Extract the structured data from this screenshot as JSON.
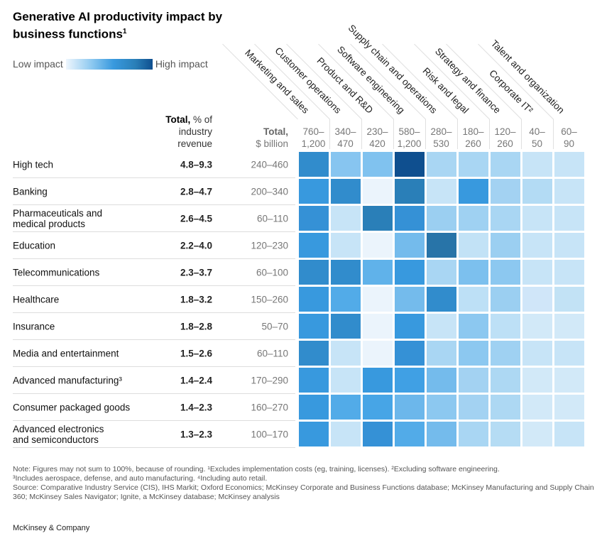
{
  "chart_data": {
    "type": "heatmap",
    "title": "Generative AI productivity impact by business functions",
    "title_footnote": "1",
    "legend": {
      "low_label": "Low impact",
      "high_label": "High impact"
    },
    "header_pct": {
      "bold": "Total,",
      "rest": " % of industry revenue"
    },
    "header_usd": {
      "bold": "Total,",
      "rest": "$ billion"
    },
    "columns": [
      {
        "label": "Marketing and sales",
        "range": [
          "760–",
          "1,200"
        ]
      },
      {
        "label": "Customer operations",
        "range": [
          "340–",
          "470"
        ]
      },
      {
        "label": "Product and R&D",
        "range": [
          "230–",
          "420"
        ]
      },
      {
        "label": "Software engineering",
        "range": [
          "580–",
          "1,200"
        ]
      },
      {
        "label": "Supply chain and operations",
        "range": [
          "280–",
          "530"
        ]
      },
      {
        "label": "Risk and legal",
        "range": [
          "180–",
          "260"
        ]
      },
      {
        "label": "Strategy and finance",
        "range": [
          "120–",
          "260"
        ]
      },
      {
        "label": "Corporate IT²",
        "range": [
          "40–",
          "50"
        ]
      },
      {
        "label": "Talent and organization",
        "range": [
          "60–",
          "90"
        ]
      }
    ],
    "rows": [
      {
        "label": "High tech",
        "pct": "4.8–9.3",
        "usd": "240–460",
        "colors": [
          "#318ccc",
          "#87c5f0",
          "#80c2ef",
          "#0f4f8f",
          "#a9d6f3",
          "#a9d6f3",
          "#a9d6f3",
          "#c7e4f7",
          "#c7e4f7"
        ]
      },
      {
        "label": "Banking",
        "pct": "2.8–4.7",
        "usd": "200–340",
        "colors": [
          "#3899de",
          "#318ccc",
          "#ebf4fc",
          "#2a7fb8",
          "#c7e4f7",
          "#3899de",
          "#a3d2f2",
          "#b3dbf4",
          "#c7e4f7"
        ]
      },
      {
        "label": "Pharmaceuticals and\nmedical products",
        "pct": "2.6–4.5",
        "usd": "60–110",
        "colors": [
          "#3591d6",
          "#c7e4f7",
          "#2a7fb8",
          "#3591d6",
          "#9bcff1",
          "#9fd1f2",
          "#a9d6f3",
          "#c7e4f7",
          "#c7e4f7"
        ]
      },
      {
        "label": "Education",
        "pct": "2.2–4.0",
        "usd": "120–230",
        "colors": [
          "#3899de",
          "#c7e4f7",
          "#ebf4fc",
          "#74bbec",
          "#2874a8",
          "#c2e2f6",
          "#9bcff1",
          "#c7e4f7",
          "#c7e4f7"
        ]
      },
      {
        "label": "Telecommunications",
        "pct": "2.3–3.7",
        "usd": "60–100",
        "colors": [
          "#318ccc",
          "#318ccc",
          "#60b2ea",
          "#3899de",
          "#a9d6f3",
          "#7cc0ee",
          "#8cc8f0",
          "#c7e4f7",
          "#c7e4f7"
        ]
      },
      {
        "label": "Healthcare",
        "pct": "1.8–3.2",
        "usd": "150–260",
        "colors": [
          "#3899de",
          "#52abe8",
          "#ebf4fc",
          "#74bbec",
          "#318ccc",
          "#bde0f6",
          "#9bcff1",
          "#d0e6f9",
          "#c2e2f5"
        ]
      },
      {
        "label": "Insurance",
        "pct": "1.8–2.8",
        "usd": "50–70",
        "colors": [
          "#3899de",
          "#318ccc",
          "#ebf4fc",
          "#3899de",
          "#c7e4f7",
          "#8cc8f0",
          "#bde0f6",
          "#d2e9f8",
          "#d2e9f8"
        ]
      },
      {
        "label": "Media and entertainment",
        "pct": "1.5–2.6",
        "usd": "60–110",
        "colors": [
          "#318ccc",
          "#c7e4f7",
          "#ebf4fc",
          "#3591d6",
          "#a9d6f3",
          "#8cc8f0",
          "#9fd1f2",
          "#c7e4f7",
          "#c7e4f7"
        ]
      },
      {
        "label": "Advanced manufacturing³",
        "pct": "1.4–2.4",
        "usd": "170–290",
        "colors": [
          "#3899de",
          "#c7e4f7",
          "#3899de",
          "#40a0e4",
          "#74bbec",
          "#a3d2f2",
          "#add8f3",
          "#d2e9f8",
          "#d2e9f8"
        ]
      },
      {
        "label": "Consumer packaged goods",
        "pct": "1.4–2.3",
        "usd": "160–270",
        "colors": [
          "#3899de",
          "#52abe8",
          "#47a5e6",
          "#6cb7eb",
          "#8cc8f0",
          "#a3d2f2",
          "#add8f3",
          "#d2e9f8",
          "#d2e9f8"
        ]
      },
      {
        "label": "Advanced electronics\nand semiconductors",
        "pct": "1.3–2.3",
        "usd": "100–170",
        "colors": [
          "#3899de",
          "#c7e4f7",
          "#3591d6",
          "#52abe8",
          "#74bbec",
          "#a9d6f3",
          "#b5dcf4",
          "#d2e9f8",
          "#c7e4f7"
        ]
      }
    ]
  },
  "notes": {
    "line1": "Note: Figures may not sum to 100%, because of rounding. ¹Excludes implementation costs (eg, training, licenses). ²Excluding software engineering.",
    "line2": "³Includes aerospace, defense, and auto manufacturing. ⁴Including auto retail.",
    "source": "Source: Comparative Industry Service (CIS), IHS Markit; Oxford Economics; McKinsey Corporate and Business Functions database; McKinsey Manufacturing and Supply Chain 360; McKinsey Sales Navigator; Ignite, a McKinsey database; McKinsey analysis"
  },
  "brand": "McKinsey & Company"
}
